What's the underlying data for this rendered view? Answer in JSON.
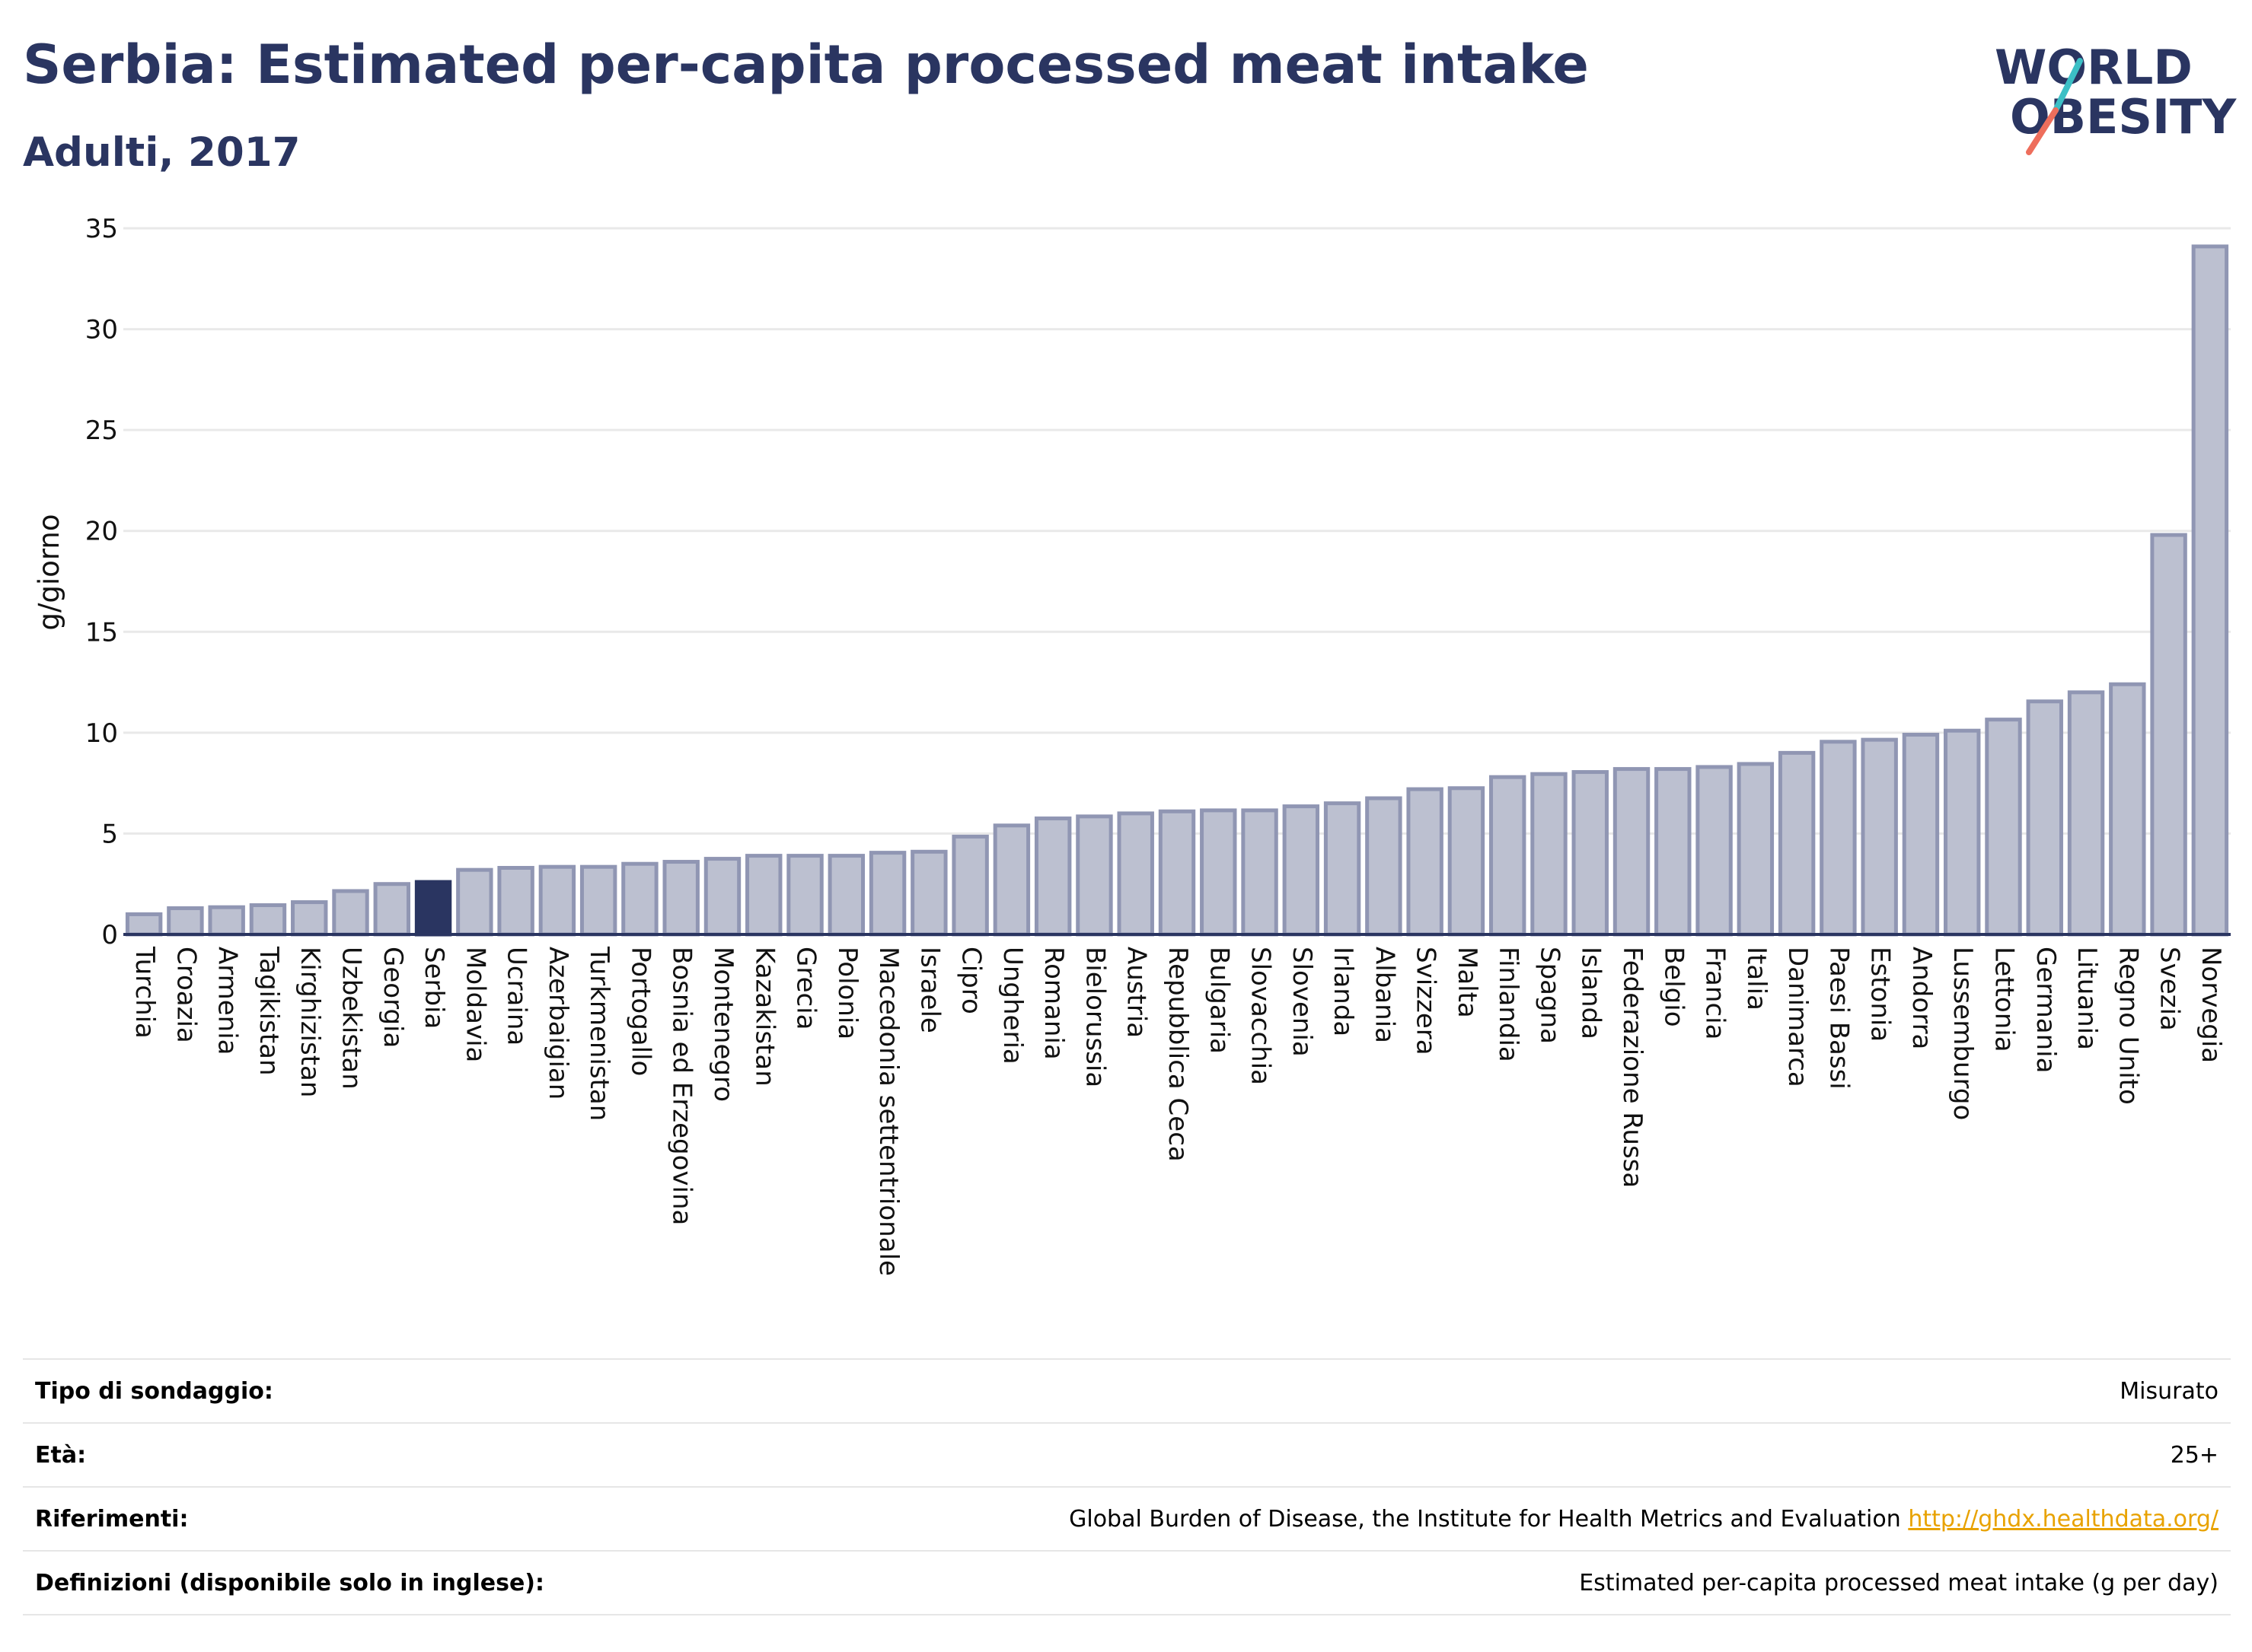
{
  "title": "Serbia: Estimated per-capita processed meat intake",
  "subtitle": "Adulti, 2017",
  "logo": {
    "line1": "WORLD",
    "line2": "OBESITY"
  },
  "chart_data": {
    "type": "bar",
    "ylabel": "g/giorno",
    "ylim": [
      0,
      35
    ],
    "yticks": [
      0,
      5,
      10,
      15,
      20,
      25,
      30,
      35
    ],
    "grid": true,
    "highlight": "Serbia",
    "colors": {
      "bar": "#bcc0d0",
      "bar_border": "#9096b3",
      "highlight": "#2a3561",
      "axis": "#2a3561",
      "grid": "#e9e9e9"
    },
    "categories": [
      "Turchia",
      "Croazia",
      "Armenia",
      "Tagikistan",
      "Kirghizistan",
      "Uzbekistan",
      "Georgia",
      "Serbia",
      "Moldavia",
      "Ucraina",
      "Azerbaigian",
      "Turkmenistan",
      "Portogallo",
      "Bosnia ed Erzegovina",
      "Montenegro",
      "Kazakistan",
      "Grecia",
      "Polonia",
      "Macedonia settentrionale",
      "Israele",
      "Cipro",
      "Ungheria",
      "Romania",
      "Bielorussia",
      "Austria",
      "Repubblica Ceca",
      "Bulgaria",
      "Slovacchia",
      "Slovenia",
      "Irlanda",
      "Albania",
      "Svizzera",
      "Malta",
      "Finlandia",
      "Spagna",
      "Islanda",
      "Federazione Russa",
      "Belgio",
      "Francia",
      "Italia",
      "Danimarca",
      "Paesi Bassi",
      "Estonia",
      "Andorra",
      "Lussemburgo",
      "Lettonia",
      "Germania",
      "Lituania",
      "Regno Unito",
      "Svezia",
      "Norvegia"
    ],
    "values": [
      1.0,
      1.3,
      1.35,
      1.45,
      1.6,
      2.15,
      2.5,
      2.6,
      3.2,
      3.3,
      3.35,
      3.35,
      3.5,
      3.6,
      3.75,
      3.9,
      3.9,
      3.9,
      4.05,
      4.1,
      4.85,
      5.4,
      5.75,
      5.85,
      6.0,
      6.1,
      6.15,
      6.15,
      6.35,
      6.5,
      6.75,
      7.2,
      7.25,
      7.8,
      7.95,
      8.05,
      8.2,
      8.2,
      8.3,
      8.45,
      9.0,
      9.55,
      9.65,
      9.9,
      10.1,
      10.65,
      11.55,
      12.0,
      12.4,
      19.8,
      34.1
    ]
  },
  "info": {
    "survey_type_label": "Tipo di sondaggio:",
    "survey_type_value": "Misurato",
    "age_label": "Età:",
    "age_value": "25+",
    "references_label": "Riferimenti:",
    "references_value": "Global Burden of Disease, the Institute for Health Metrics and Evaluation",
    "references_link": "http://ghdx.healthdata.org/",
    "definitions_label": "Definizioni (disponibile solo in inglese):",
    "definitions_value": "Estimated per-capita processed meat intake (g per day)"
  }
}
